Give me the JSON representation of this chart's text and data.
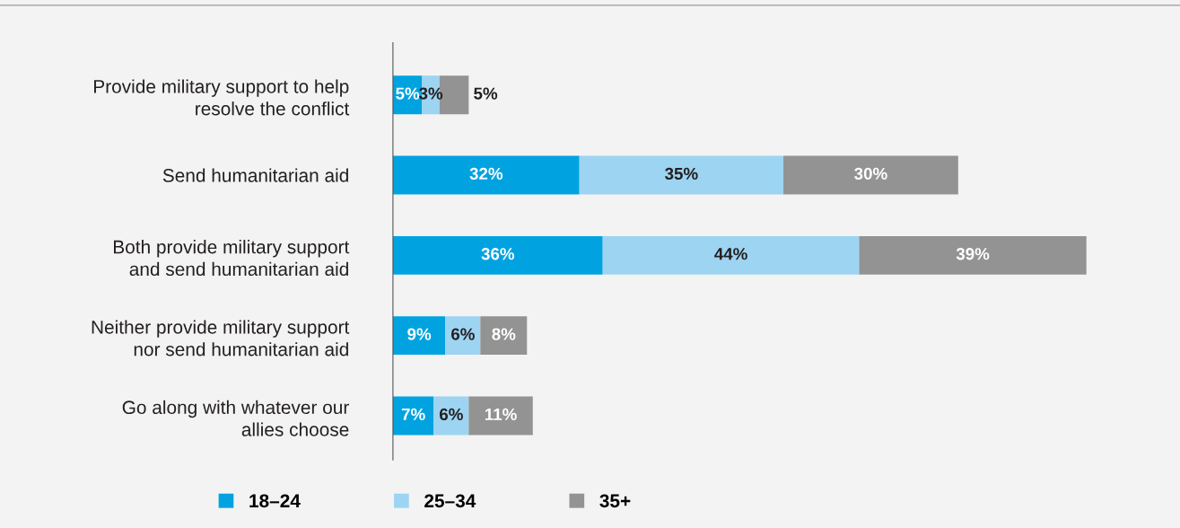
{
  "chart_data": {
    "type": "bar",
    "orientation": "horizontal",
    "stacked": true,
    "legend": "bottom",
    "grid": false,
    "tick_labels": "y",
    "categories": [
      "Provide military support to help\nresolve the conflict",
      "Send humanitarian aid",
      "Both provide military support\nand send humanitarian aid",
      "Neither provide military support\nnor send humanitarian aid",
      "Go along with whatever our\nallies choose"
    ],
    "series": [
      {
        "name": "18–24",
        "color": "#00a3e0",
        "values": [
          5,
          32,
          36,
          9,
          7
        ],
        "value_labels": [
          "5%",
          "32%",
          "36%",
          "9%",
          "7%"
        ]
      },
      {
        "name": "25–34",
        "color": "#9dd4f2",
        "values": [
          3,
          35,
          44,
          6,
          6
        ],
        "value_labels": [
          "3%",
          "35%",
          "44%",
          "6%",
          "6%"
        ]
      },
      {
        "name": "35+",
        "color": "#939393",
        "values": [
          5,
          30,
          39,
          8,
          11
        ],
        "value_labels": [
          "5%",
          "30%",
          "39%",
          "8%",
          "11%"
        ]
      }
    ]
  }
}
